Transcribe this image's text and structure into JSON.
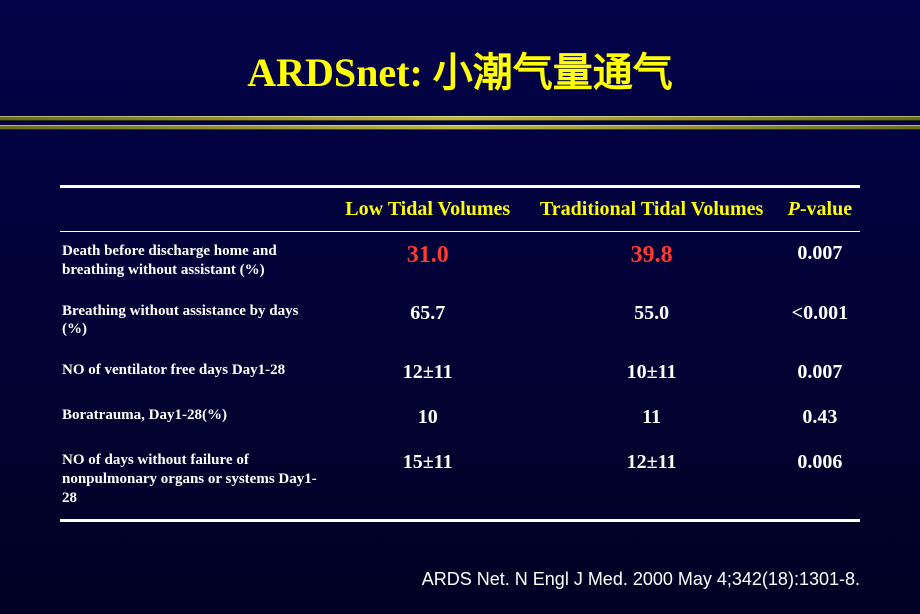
{
  "title": "ARDSnet: 小潮气量通气",
  "columns": {
    "c1": "Low Tidal Volumes",
    "c2": "Traditional Tidal Volumes",
    "c3_prefix": "P",
    "c3_suffix": "-value"
  },
  "rows": [
    {
      "label": "Death before discharge home and breathing without assistant (%)",
      "v1": "31.0",
      "v2": "39.8",
      "p": "0.007",
      "highlight": true
    },
    {
      "label": "Breathing without assistance by days (%)",
      "v1": "65.7",
      "v2": "55.0",
      "p": "<0.001",
      "highlight": false
    },
    {
      "label": "NO of  ventilator free days Day1-28",
      "v1": "12±11",
      "v2": "10±11",
      "p": "0.007",
      "highlight": false
    },
    {
      "label": "Boratrauma, Day1-28(%)",
      "v1": "10",
      "v2": "11",
      "p": "0.43",
      "highlight": false
    },
    {
      "label": "NO of days without failure of nonpulmonary  organs or systems Day1-28",
      "v1": "15±11",
      "v2": "12±11",
      "p": "0.006",
      "highlight": false
    }
  ],
  "citation": "ARDS Net.  N Engl J Med. 2000 May 4;342(18):1301-8.",
  "style": {
    "title_color": "#ffff00",
    "header_color": "#ffff00",
    "text_color": "#ffffff",
    "highlight_color": "#ff3b2f",
    "bg_gradient_top": "#03034a",
    "bg_gradient_bottom": "#010124",
    "rule_color": "#ffffff",
    "divider_color": "#b8b840",
    "title_fontsize": 40,
    "header_fontsize": 20,
    "cell_fontsize": 20,
    "rowlabel_fontsize": 15,
    "citation_fontsize": 18
  }
}
